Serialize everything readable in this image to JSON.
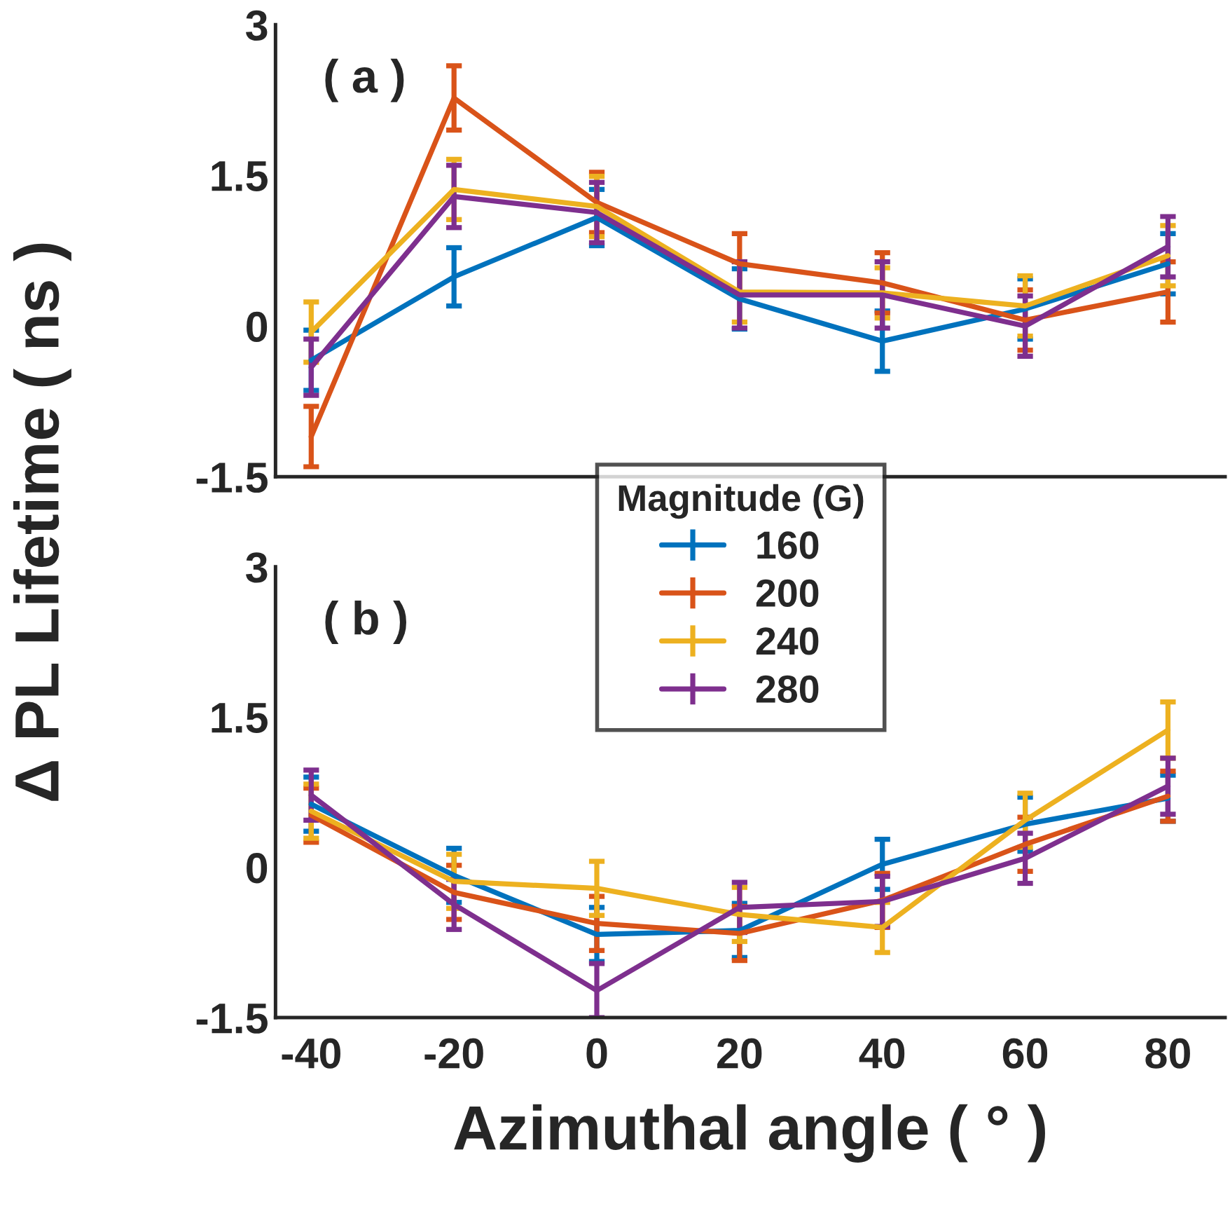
{
  "chart_data": [
    {
      "type": "line",
      "annotations": [
        "( a )"
      ],
      "ylabel": "Δ PL Lifetime ( ns )",
      "legend_title": "Magnitude (G)",
      "legend": "bottom",
      "tick_labels": "y",
      "x": [
        -40,
        -20,
        0,
        20,
        40,
        60,
        80
      ],
      "xlim": [
        -45,
        88
      ],
      "ylim": [
        -1.5,
        3
      ],
      "yticks": [
        -1.5,
        0,
        1.5,
        3
      ],
      "series": [
        {
          "name": "160",
          "color": "#0072bd",
          "values": [
            -0.34,
            0.49,
            1.08,
            0.27,
            -0.15,
            0.17,
            0.62
          ],
          "errors": [
            0.3,
            0.29,
            0.28,
            0.3,
            0.3,
            0.3,
            0.3
          ]
        },
        {
          "name": "200",
          "color": "#d95319",
          "values": [
            -1.1,
            2.27,
            1.23,
            0.62,
            0.43,
            0.06,
            0.34
          ],
          "errors": [
            0.3,
            0.32,
            0.3,
            0.3,
            0.3,
            0.3,
            0.3
          ]
        },
        {
          "name": "240",
          "color": "#edb120",
          "values": [
            -0.06,
            1.36,
            1.19,
            0.34,
            0.33,
            0.2,
            0.7
          ],
          "errors": [
            0.3,
            0.3,
            0.3,
            0.3,
            0.25,
            0.3,
            0.3
          ]
        },
        {
          "name": "280",
          "color": "#7e2f8e",
          "values": [
            -0.41,
            1.29,
            1.13,
            0.31,
            0.31,
            0.0,
            0.79
          ],
          "errors": [
            0.28,
            0.31,
            0.3,
            0.33,
            0.33,
            0.3,
            0.3
          ]
        }
      ]
    },
    {
      "type": "line",
      "annotations": [
        "( b )"
      ],
      "xlabel": "Azimuthal angle ( ° )",
      "x": [
        -40,
        -20,
        0,
        20,
        40,
        60,
        80
      ],
      "xlim": [
        -45,
        88
      ],
      "xticks": [
        -40,
        -20,
        0,
        20,
        40,
        60,
        80
      ],
      "ylim": [
        -1.5,
        3
      ],
      "yticks": [
        -1.5,
        0,
        1.5,
        3
      ],
      "series": [
        {
          "color": "#0072bd",
          "values": [
            0.63,
            -0.08,
            -0.67,
            -0.63,
            0.03,
            0.43,
            0.69
          ],
          "errors": [
            0.27,
            0.27,
            0.27,
            0.27,
            0.25,
            0.27,
            0.23
          ]
        },
        {
          "color": "#d95319",
          "values": [
            0.52,
            -0.25,
            -0.56,
            -0.66,
            -0.33,
            0.23,
            0.71
          ],
          "errors": [
            0.27,
            0.27,
            0.27,
            0.27,
            0.27,
            0.27,
            0.25
          ]
        },
        {
          "color": "#edb120",
          "values": [
            0.56,
            -0.14,
            -0.21,
            -0.47,
            -0.6,
            0.47,
            1.37
          ],
          "errors": [
            0.27,
            0.27,
            0.27,
            0.27,
            0.25,
            0.27,
            0.28
          ]
        },
        {
          "color": "#7e2f8e",
          "values": [
            0.72,
            -0.37,
            -1.23,
            -0.4,
            -0.34,
            0.09,
            0.81
          ],
          "errors": [
            0.25,
            0.25,
            0.27,
            0.25,
            0.25,
            0.25,
            0.28
          ]
        }
      ]
    }
  ]
}
